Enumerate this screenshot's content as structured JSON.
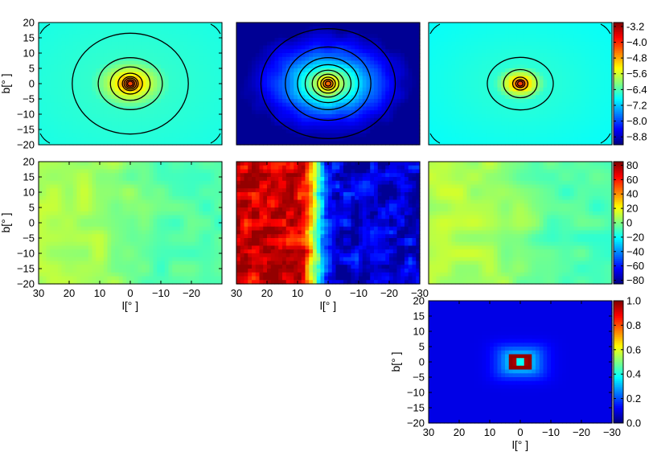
{
  "chart_data": [
    {
      "type": "heatmap",
      "panel": "row1-col1",
      "field": "density",
      "contours": true,
      "xlim": [
        30,
        -30
      ],
      "ylim": [
        -20,
        20
      ],
      "xticks": [],
      "yticks": [
        -20,
        -15,
        -10,
        -5,
        0,
        5,
        10,
        15,
        20
      ],
      "ylabel": "b[° ]",
      "xlabel": "",
      "colorbar": null
    },
    {
      "type": "heatmap",
      "panel": "row1-col2",
      "field": "density",
      "contours": true,
      "xlim": [
        30,
        -30
      ],
      "ylim": [
        -20,
        20
      ],
      "xticks": [],
      "yticks": [],
      "ylabel": "",
      "xlabel": "",
      "colorbar": null
    },
    {
      "type": "heatmap",
      "panel": "row1-col3",
      "field": "density",
      "contours": true,
      "xlim": [
        30,
        -30
      ],
      "ylim": [
        -20,
        20
      ],
      "xticks": [],
      "yticks": [],
      "ylabel": "",
      "xlabel": "",
      "colorbar": {
        "range": [
          -9.2,
          -3.0
        ],
        "tick_values": [
          -3.2,
          -4.0,
          -4.8,
          -5.6,
          -6.4,
          -7.2,
          -8.0,
          -8.8
        ],
        "tick_labels": [
          "-3.2",
          "−4.0",
          "−4.8",
          "−5.6",
          "−6.4",
          "−7.2",
          "−8.0",
          "−8.8"
        ]
      }
    },
    {
      "type": "heatmap",
      "panel": "row2-col1",
      "field": "velocity",
      "contours": false,
      "xlim": [
        30,
        -30
      ],
      "ylim": [
        -20,
        20
      ],
      "xticks": [
        30,
        20,
        10,
        0,
        -10,
        -20
      ],
      "xtick_labels": [
        "30",
        "20",
        "10",
        "0",
        "−10",
        "−20"
      ],
      "yticks": [
        -20,
        -15,
        -10,
        -5,
        0,
        5,
        10,
        15,
        20
      ],
      "ylabel": "b[° ]",
      "xlabel": "l[° ]",
      "colorbar": null
    },
    {
      "type": "heatmap",
      "panel": "row2-col2",
      "field": "velocity",
      "contours": false,
      "xlim": [
        30,
        -30
      ],
      "ylim": [
        -20,
        20
      ],
      "xticks": [
        30,
        20,
        10,
        0,
        -10,
        -20,
        -30
      ],
      "xtick_labels": [
        "30",
        "20",
        "10",
        "0",
        "−10",
        "−20",
        "−30"
      ],
      "yticks": [],
      "ylabel": "",
      "xlabel": "l[° ]",
      "colorbar": null
    },
    {
      "type": "heatmap",
      "panel": "row2-col3",
      "field": "velocity",
      "contours": false,
      "xlim": [
        30,
        -30
      ],
      "ylim": [
        -20,
        20
      ],
      "xticks": [],
      "yticks": [],
      "ylabel": "",
      "xlabel": "",
      "colorbar": {
        "range": [
          -85,
          85
        ],
        "tick_values": [
          80,
          60,
          40,
          20,
          0,
          -20,
          -40,
          -60,
          -80
        ],
        "tick_labels": [
          "80",
          "60",
          "40",
          "20",
          "0",
          "−20",
          "−40",
          "−60",
          "−80"
        ]
      }
    },
    {
      "type": "heatmap",
      "panel": "row3-col3",
      "field": "fraction",
      "contours": false,
      "xlim": [
        30,
        -30
      ],
      "ylim": [
        -20,
        20
      ],
      "xticks": [
        30,
        20,
        10,
        0,
        -10,
        -20,
        -30
      ],
      "xtick_labels": [
        "30",
        "20",
        "10",
        "0",
        "−10",
        "−20",
        "−30"
      ],
      "yticks": [
        -20,
        -15,
        -10,
        -5,
        0,
        5,
        10,
        15,
        20
      ],
      "ylabel": "b[° ]",
      "xlabel": "l[° ]",
      "colorbar": {
        "range": [
          0.0,
          1.0
        ],
        "tick_values": [
          1.0,
          0.8,
          0.6,
          0.4,
          0.2,
          0.0
        ],
        "tick_labels": [
          "1.0",
          "0.8",
          "0.6",
          "0.4",
          "0.2",
          "0.0"
        ]
      }
    }
  ]
}
